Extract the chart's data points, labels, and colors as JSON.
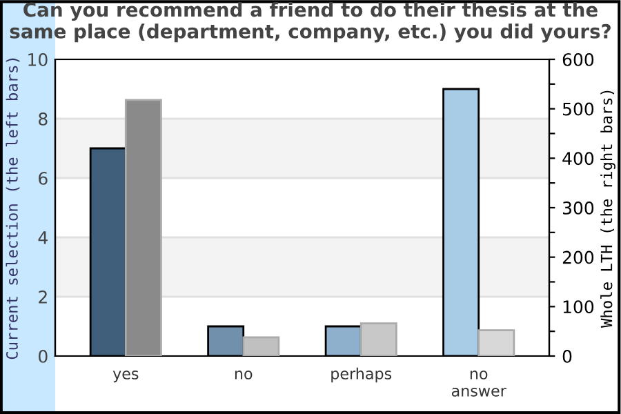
{
  "chart_data": {
    "type": "bar",
    "title": "Can you recommend a friend to do their thesis at the same place (department, company, etc.) you did yours?",
    "categories": [
      "yes",
      "no",
      "perhaps",
      "no\nanswer"
    ],
    "series": [
      {
        "colors": [
          "#3f5f7a",
          "#7090ac",
          "#8fb0cc",
          "#a8cbe6"
        ],
        "values": [
          7,
          1,
          1,
          9
        ]
      },
      {
        "colors": [
          "#8a8a8a",
          "#c0c0c0",
          "#c8c8c8",
          "#d8d8d8"
        ],
        "values": [
          518,
          38,
          66,
          52
        ],
        "axis": "y2"
      }
    ],
    "ylabel": "Current selection (the left bars)",
    "y2label": "Whole LTH (the right bars)",
    "ylim": [
      0,
      10
    ],
    "yticks": [
      0,
      2,
      4,
      6,
      8,
      10
    ],
    "y2lim": [
      0,
      600
    ],
    "y2ticks": [
      0,
      {
        "value": 50,
        "label": null
      },
      100,
      {
        "value": 150,
        "label": null
      },
      200,
      {
        "value": 250,
        "label": null
      },
      300,
      {
        "value": 350,
        "label": null
      },
      400,
      {
        "value": 450,
        "label": null
      },
      500,
      {
        "value": 550,
        "label": null
      },
      600
    ],
    "bands": [
      {
        "axis": "y",
        "from": 2,
        "to": 4,
        "color": "#f3f3f3"
      },
      {
        "axis": "y",
        "from": 6,
        "to": 8,
        "color": "#f3f3f3"
      }
    ],
    "grid": "y"
  }
}
